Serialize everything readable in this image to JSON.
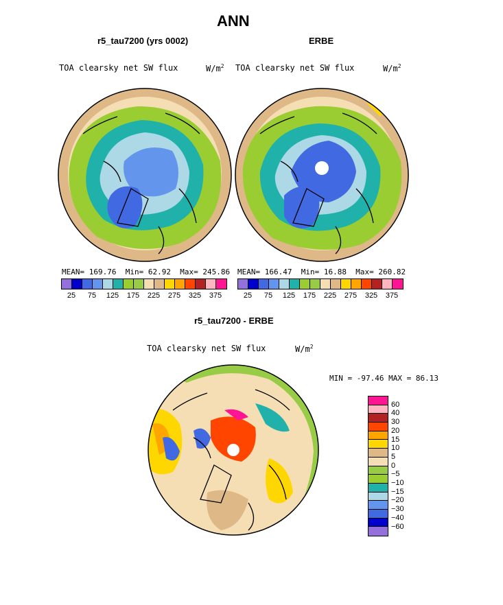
{
  "chart_data": [
    {
      "type": "heatmap",
      "panel": "model",
      "title": "r5_tau7200 (yrs 0002)",
      "left_label": "TOA clearsky net SW flux",
      "right_label": "W/m",
      "units_sup": "2",
      "stats": {
        "mean_label": "MEAN=",
        "mean": "169.76",
        "min_label": "Min=",
        "min": "62.92",
        "max_label": "Max=",
        "max": "245.86"
      },
      "levels": [
        "25",
        "75",
        "125",
        "175",
        "225",
        "275",
        "325",
        "375"
      ],
      "colors": [
        "#9370db",
        "#0000cd",
        "#4169e1",
        "#6495ed",
        "#add8e6",
        "#20b2aa",
        "#9acd32",
        "#98cc46",
        "#f5deb3",
        "#deb887",
        "#ffd700",
        "#ffa500",
        "#ff4500",
        "#b22222",
        "#ffb6c1",
        "#ff1493"
      ]
    },
    {
      "type": "heatmap",
      "panel": "obs",
      "title": "ERBE",
      "left_label": "TOA clearsky net SW flux",
      "right_label": "W/m",
      "units_sup": "2",
      "stats": {
        "mean_label": "MEAN=",
        "mean": "166.47",
        "min_label": "Min=",
        "min": "16.88",
        "max_label": "Max=",
        "max": "260.82"
      },
      "levels": [
        "25",
        "75",
        "125",
        "175",
        "225",
        "275",
        "325",
        "375"
      ],
      "colors": [
        "#9370db",
        "#0000cd",
        "#4169e1",
        "#6495ed",
        "#add8e6",
        "#20b2aa",
        "#9acd32",
        "#98cc46",
        "#f5deb3",
        "#deb887",
        "#ffd700",
        "#ffa500",
        "#ff4500",
        "#b22222",
        "#ffb6c1",
        "#ff1493"
      ]
    },
    {
      "type": "heatmap",
      "panel": "difference",
      "title": "r5_tau7200 - ERBE",
      "left_label": "TOA clearsky net SW flux",
      "right_label": "W/m",
      "units_sup": "2",
      "minmax": {
        "min_label": "MIN =",
        "min": "-97.46",
        "max_label": "MAX =",
        "max": "86.13"
      },
      "levels": [
        "60",
        "40",
        "30",
        "20",
        "15",
        "10",
        "5",
        "0",
        "−5",
        "−10",
        "−15",
        "−20",
        "−30",
        "−40",
        "−60"
      ],
      "colors": [
        "#ff1493",
        "#ffb6c1",
        "#b22222",
        "#ff4500",
        "#ffa500",
        "#ffd700",
        "#deb887",
        "#f5deb3",
        "#98cc46",
        "#9acd32",
        "#20b2aa",
        "#add8e6",
        "#6495ed",
        "#4169e1",
        "#0000cd",
        "#9370db"
      ]
    }
  ],
  "main_title": "ANN"
}
